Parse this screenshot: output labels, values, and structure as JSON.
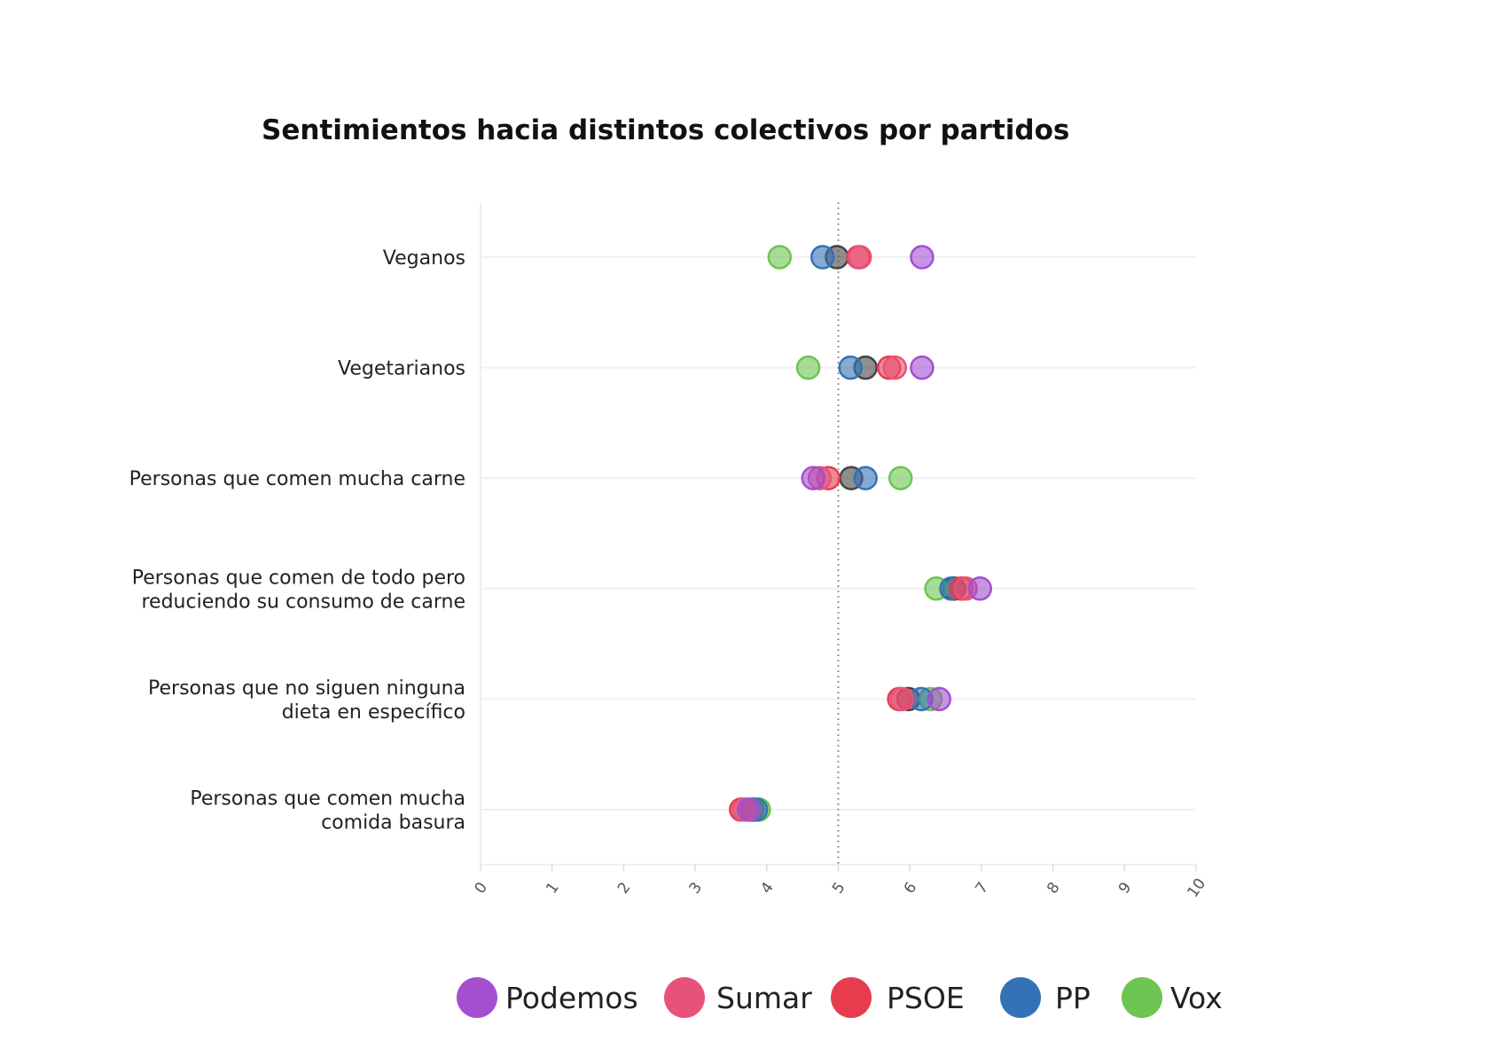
{
  "chart_data": {
    "type": "scatter",
    "title": "Sentimientos hacia distintos colectivos por partidos",
    "xlabel": "",
    "ylabel": "",
    "xlim": [
      0,
      10
    ],
    "x_ticks": [
      "0",
      "1",
      "2",
      "3",
      "4",
      "5",
      "6",
      "7",
      "8",
      "9",
      "10"
    ],
    "reference_line": 5,
    "grid": true,
    "legend_position": "bottom",
    "categories": [
      [
        "Veganos"
      ],
      [
        "Vegetarianos"
      ],
      [
        "Personas que comen mucha carne"
      ],
      [
        "Personas que comen de todo pero",
        "reduciendo su consumo de carne"
      ],
      [
        "Personas que no siguen ninguna",
        "dieta en específico"
      ],
      [
        "Personas que comen mucha",
        "comida basura"
      ]
    ],
    "series": [
      {
        "name": "",
        "color": "#444444",
        "in_legend": false,
        "values": [
          4.98,
          5.38,
          5.18,
          6.62,
          5.98,
          3.8
        ]
      },
      {
        "name": "Vox",
        "color": "#6cc551",
        "in_legend": true,
        "values": [
          4.18,
          4.58,
          5.87,
          6.37,
          6.29,
          3.89
        ]
      },
      {
        "name": "PP",
        "color": "#3472b5",
        "in_legend": true,
        "values": [
          4.78,
          5.17,
          5.38,
          6.58,
          6.16,
          3.85
        ]
      },
      {
        "name": "PSOE",
        "color": "#e63c4d",
        "in_legend": true,
        "values": [
          5.28,
          5.71,
          4.86,
          6.72,
          5.85,
          3.64
        ]
      },
      {
        "name": "Sumar",
        "color": "#e8517a",
        "in_legend": true,
        "values": [
          5.3,
          5.79,
          4.74,
          6.78,
          5.89,
          3.68
        ]
      },
      {
        "name": "Podemos",
        "color": "#a24fd0",
        "in_legend": true,
        "values": [
          6.17,
          6.17,
          4.65,
          6.98,
          6.41,
          3.75
        ]
      }
    ],
    "legend_order": [
      "Podemos",
      "Sumar",
      "PSOE",
      "PP",
      "Vox"
    ]
  }
}
